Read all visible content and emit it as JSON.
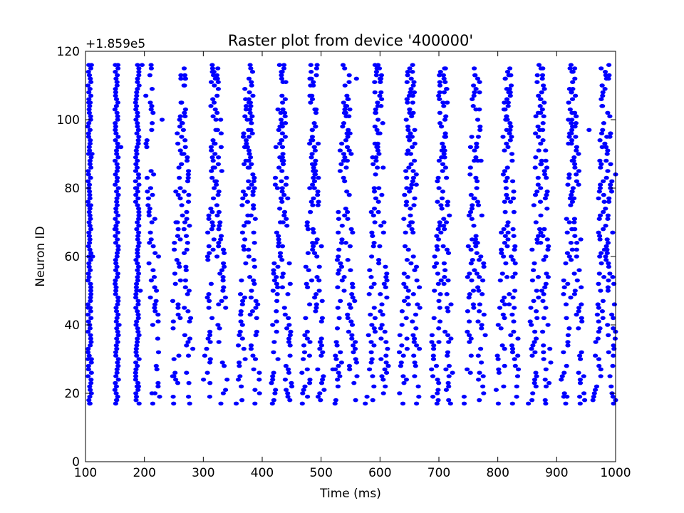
{
  "chart_data": {
    "type": "scatter",
    "title": "Raster plot from device '400000'",
    "xlabel": "Time (ms)",
    "ylabel": "Neuron ID",
    "y_offset_label": "+1.859e5",
    "xlim": [
      100,
      1000
    ],
    "ylim": [
      0,
      120
    ],
    "x_ticks": [
      "100",
      "200",
      "300",
      "400",
      "500",
      "600",
      "700",
      "800",
      "900",
      "1000"
    ],
    "y_ticks": [
      "0",
      "20",
      "40",
      "60",
      "80",
      "100",
      "120"
    ],
    "grid": false,
    "legend": "none",
    "marker_color": "#0000ff",
    "neuron_range": [
      17,
      116
    ],
    "series": [
      {
        "spike_wave_times_ms": [
          107,
          153,
          188,
          220,
          250,
          278,
          305,
          335,
          362,
          390,
          418,
          446,
          473,
          500,
          527,
          555,
          582,
          610,
          637,
          665,
          692,
          720,
          748,
          775,
          803,
          830,
          858,
          886,
          913,
          941,
          968,
          996
        ],
        "points": [
          [
            107,
            17
          ],
          [
            110,
            30
          ],
          [
            108,
            45
          ],
          [
            112,
            60
          ],
          [
            109,
            75
          ],
          [
            111,
            90
          ],
          [
            108,
            105
          ],
          [
            110,
            116
          ],
          [
            153,
            18
          ],
          [
            157,
            40
          ],
          [
            150,
            68
          ],
          [
            160,
            92
          ],
          [
            155,
            116
          ],
          [
            190,
            22
          ],
          [
            193,
            50
          ],
          [
            187,
            80
          ],
          [
            196,
            116
          ],
          [
            218,
            20
          ],
          [
            224,
            60
          ],
          [
            230,
            100
          ],
          [
            250,
            25
          ],
          [
            256,
            70
          ],
          [
            262,
            112
          ],
          [
            520,
            27
          ],
          [
            540,
            72
          ],
          [
            560,
            112
          ],
          [
            700,
            35
          ],
          [
            760,
            88
          ],
          [
            820,
            109
          ],
          [
            912,
            19
          ],
          [
            930,
            55
          ],
          [
            955,
            97
          ],
          [
            996,
            42
          ],
          [
            1000,
            84
          ],
          [
            994,
            20
          ]
        ]
      }
    ]
  }
}
